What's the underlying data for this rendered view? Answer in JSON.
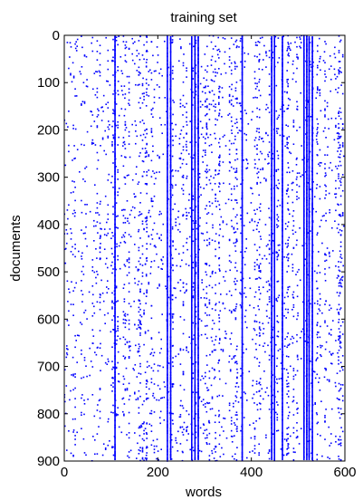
{
  "chart_data": {
    "type": "scatter",
    "title": "training set",
    "xlabel": "words",
    "ylabel": "documents",
    "xlim": [
      0,
      600
    ],
    "ylim": [
      0,
      900
    ],
    "y_reversed": true,
    "x_ticks": [
      0,
      200,
      400,
      600
    ],
    "y_ticks": [
      0,
      100,
      200,
      300,
      400,
      500,
      600,
      700,
      800,
      900
    ],
    "grid": false,
    "marker_color": "#0000ff",
    "series": [
      {
        "dense_columns": [
          108,
          220,
          227,
          272,
          279,
          286,
          380,
          443,
          449,
          466,
          512,
          518,
          523,
          530
        ]
      }
    ]
  }
}
